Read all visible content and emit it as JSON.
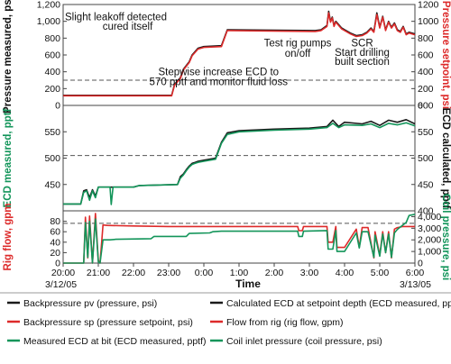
{
  "colors": {
    "black": "#1a1a1a",
    "red": "#dd2a2a",
    "green": "#13955a",
    "frame": "#444444",
    "ref": "#555555"
  },
  "chart_data": {
    "type": "line",
    "xlabel": "Time",
    "x_ticks": [
      "20:00",
      "21:00",
      "22:00",
      "23:00",
      "0:00",
      "1:00",
      "2:00",
      "3:00",
      "4:00",
      "5:00",
      "6:00"
    ],
    "date_start": "3/12/05",
    "date_end": "3/13/05",
    "xlim": [
      "20:00",
      "6:00"
    ],
    "panels": [
      {
        "id": "pressure",
        "ylabel_left": "Pressure measured, psi",
        "ylabel_right": "Pressure setpoint, psi",
        "ylim": [
          0,
          1200
        ],
        "y_ticks_left": [
          "0",
          "200",
          "400",
          "600",
          "800",
          "1,000",
          "1,200"
        ],
        "y_ticks_right": [
          "0",
          "200",
          "400",
          "600",
          "800",
          "1000",
          "1200"
        ],
        "reference_line": 300,
        "annotations": [
          {
            "text": "Slight leakoff detected",
            "x": "21:30",
            "y": 1010
          },
          {
            "text": "cured itself",
            "x": "21:50",
            "y": 900
          },
          {
            "text": "Test rig pumps",
            "x": "2:40",
            "y": 700
          },
          {
            "text": "on/off",
            "x": "2:40",
            "y": 580
          },
          {
            "text": "SCR",
            "x": "4:30",
            "y": 700
          },
          {
            "text": "Start drilling",
            "x": "4:30",
            "y": 590
          },
          {
            "text": "built section",
            "x": "4:30",
            "y": 480
          },
          {
            "text": "Stepwise increase ECD to",
            "x": "0:25",
            "y": 360
          },
          {
            "text": "570 pptf and monitor fluid loss",
            "x": "0:25",
            "y": 240
          }
        ],
        "series": [
          {
            "name": "Backpressure pv (pressure, psi)",
            "color": "black",
            "x": [
              "20:00",
              "23:05",
              "23:10",
              "23:20",
              "23:25",
              "23:35",
              "23:40",
              "23:50",
              "0:00",
              "0:30",
              "0:40",
              "3:10",
              "3:20",
              "3:30",
              "3:33",
              "3:36",
              "3:39",
              "3:42",
              "3:45",
              "3:55",
              "4:10",
              "4:20",
              "4:30",
              "4:38",
              "4:45",
              "4:50",
              "4:55",
              "5:00",
              "5:05",
              "5:10",
              "5:15",
              "5:20",
              "5:25",
              "5:30",
              "5:35",
              "5:40",
              "5:45",
              "5:50",
              "6:00"
            ],
            "y": [
              120,
              120,
              250,
              330,
              430,
              520,
              600,
              680,
              700,
              710,
              900,
              890,
              900,
              950,
              1120,
              1000,
              1050,
              950,
              1000,
              920,
              860,
              830,
              840,
              870,
              920,
              880,
              1100,
              930,
              1060,
              900,
              1000,
              930,
              980,
              900,
              880,
              940,
              850,
              870,
              850
            ]
          },
          {
            "name": "Backpressure sp (pressure setpoint, psi)",
            "color": "red",
            "x": [
              "20:00",
              "23:05",
              "23:10",
              "23:20",
              "23:25",
              "23:35",
              "23:40",
              "23:50",
              "0:00",
              "0:30",
              "0:40",
              "3:10",
              "3:20",
              "3:30",
              "3:33",
              "3:36",
              "3:39",
              "3:42",
              "3:45",
              "3:55",
              "4:10",
              "4:20",
              "4:30",
              "4:38",
              "4:45",
              "4:50",
              "4:55",
              "5:00",
              "5:05",
              "5:10",
              "5:15",
              "5:20",
              "5:25",
              "5:30",
              "5:35",
              "5:40",
              "5:45",
              "5:50",
              "6:00"
            ],
            "y": [
              115,
              115,
              240,
              320,
              420,
              510,
              590,
              670,
              690,
              700,
              890,
              880,
              890,
              940,
              1100,
              990,
              1040,
              940,
              990,
              910,
              850,
              820,
              830,
              860,
              910,
              870,
              1080,
              920,
              1050,
              890,
              990,
              920,
              970,
              890,
              870,
              930,
              840,
              860,
              840
            ]
          }
        ]
      },
      {
        "id": "ecd",
        "ylabel_left": "ECD measured, pptf",
        "ylabel_right": "ECD calculated, pptf",
        "ylim": [
          400,
          600
        ],
        "y_ticks_left": [
          "450",
          "500",
          "550"
        ],
        "y_ticks_right": [
          "400",
          "450",
          "500",
          "550",
          "600"
        ],
        "reference_line": 505,
        "series": [
          {
            "name": "Calculated ECD at setpoint depth (ECD measured, pptf)",
            "color": "black",
            "x": [
              "20:00",
              "20:30",
              "20:35",
              "20:40",
              "20:45",
              "20:50",
              "20:55",
              "21:00",
              "22:00",
              "22:10",
              "23:15",
              "23:20",
              "23:25",
              "23:30",
              "23:35",
              "23:40",
              "23:45",
              "23:50",
              "0:00",
              "0:20",
              "0:30",
              "0:40",
              "1:00",
              "2:00",
              "3:00",
              "3:30",
              "3:40",
              "3:50",
              "4:00",
              "4:30",
              "4:45",
              "5:00",
              "5:15",
              "5:30",
              "5:45",
              "6:00"
            ],
            "y": [
              413,
              413,
              438,
              440,
              425,
              440,
              428,
              445,
              445,
              448,
              450,
              465,
              470,
              478,
              485,
              490,
              492,
              494,
              496,
              500,
              530,
              548,
              552,
              555,
              557,
              560,
              572,
              560,
              568,
              565,
              570,
              562,
              572,
              568,
              573,
              565
            ]
          },
          {
            "name": "Measured ECD at bit (ECD measured, pptf)",
            "color": "green",
            "x": [
              "20:00",
              "20:30",
              "20:35",
              "20:40",
              "20:45",
              "20:50",
              "20:55",
              "21:00",
              "21:20",
              "21:22",
              "21:25",
              "22:00",
              "22:10",
              "23:15",
              "23:20",
              "23:25",
              "23:30",
              "23:35",
              "23:40",
              "23:45",
              "23:50",
              "0:00",
              "0:20",
              "0:30",
              "0:40",
              "1:00",
              "2:00",
              "3:00",
              "3:30",
              "3:40",
              "3:50",
              "4:00",
              "4:30",
              "4:45",
              "5:00",
              "5:15",
              "5:30",
              "5:45",
              "6:00"
            ],
            "y": [
              413,
              413,
              435,
              438,
              420,
              438,
              425,
              445,
              445,
              412,
              445,
              445,
              448,
              450,
              462,
              468,
              476,
              483,
              488,
              490,
              492,
              494,
              498,
              528,
              545,
              550,
              553,
              555,
              558,
              566,
              558,
              563,
              562,
              565,
              558,
              566,
              563,
              567,
              561
            ]
          }
        ]
      },
      {
        "id": "flow",
        "ylabel_left": "Rig flow, gpm",
        "ylabel_right": "Coil pressure, psi",
        "ylim_left": [
          0,
          100
        ],
        "ylim_right": [
          0,
          4500
        ],
        "y_ticks_left": [
          "0",
          "20",
          "40",
          "60",
          "80"
        ],
        "y_ticks_right": [
          "0",
          "1,000",
          "2,000",
          "3,000",
          "4,000"
        ],
        "reference_line": 76,
        "series": [
          {
            "name": "Flow from rig (rig flow, gpm)",
            "color": "red",
            "axis": "left",
            "x": [
              "20:00",
              "20:35",
              "20:38",
              "20:42",
              "20:45",
              "20:50",
              "20:55",
              "21:00",
              "21:03",
              "21:08",
              "21:15",
              "22:00",
              "23:00",
              "0:00",
              "1:00",
              "2:00",
              "2:40",
              "2:42",
              "2:48",
              "2:50",
              "3:00",
              "3:30",
              "3:32",
              "3:40",
              "3:45",
              "3:47",
              "4:00",
              "4:20",
              "4:25",
              "4:30",
              "4:40",
              "4:50",
              "4:52",
              "5:00",
              "5:05",
              "5:10",
              "5:15",
              "5:20",
              "5:25",
              "5:30",
              "5:40",
              "6:00"
            ],
            "y": [
              0,
              0,
              88,
              10,
              90,
              0,
              95,
              5,
              0,
              73,
              72,
              71,
              70,
              70,
              70,
              70,
              70,
              62,
              62,
              70,
              70,
              70,
              40,
              40,
              70,
              30,
              30,
              65,
              30,
              68,
              68,
              10,
              60,
              15,
              60,
              20,
              60,
              10,
              65,
              68,
              70,
              70
            ]
          },
          {
            "name": "Coil inlet pressure (coil pressure, psi)",
            "color": "green",
            "axis": "right",
            "x": [
              "20:00",
              "20:35",
              "20:38",
              "20:42",
              "20:45",
              "20:50",
              "20:55",
              "21:00",
              "21:03",
              "21:08",
              "21:20",
              "21:30",
              "22:30",
              "22:35",
              "23:30",
              "23:35",
              "0:10",
              "0:15",
              "0:30",
              "2:40",
              "2:42",
              "2:48",
              "2:50",
              "3:30",
              "3:32",
              "3:40",
              "3:45",
              "3:47",
              "4:00",
              "4:20",
              "4:25",
              "4:30",
              "4:40",
              "4:50",
              "4:52",
              "5:00",
              "5:05",
              "5:10",
              "5:15",
              "5:20",
              "5:25",
              "5:30",
              "5:45",
              "5:50",
              "6:00"
            ],
            "y": [
              0,
              0,
              3500,
              500,
              3600,
              0,
              3800,
              100,
              0,
              2000,
              2000,
              2050,
              2100,
              2300,
              2300,
              2550,
              2600,
              2700,
              2750,
              2750,
              2300,
              2300,
              2750,
              2800,
              1200,
              1200,
              2800,
              1000,
              1000,
              2600,
              1300,
              2700,
              2700,
              500,
              2400,
              600,
              2500,
              900,
              2500,
              500,
              2600,
              2900,
              3500,
              4100,
              4200
            ]
          }
        ]
      }
    ],
    "legend": [
      {
        "label": "Backpressure pv (pressure, psi)",
        "color": "black"
      },
      {
        "label": "Calculated ECD at setpoint depth (ECD measured, pptf)",
        "color": "black"
      },
      {
        "label": "Backpressure sp (pressure setpoint, psi)",
        "color": "red"
      },
      {
        "label": "Flow from rig (rig flow, gpm)",
        "color": "red"
      },
      {
        "label": "Measured ECD at bit (ECD measured, pptf)",
        "color": "green"
      },
      {
        "label": "Coil inlet pressure (coil pressure, psi)",
        "color": "green"
      }
    ]
  }
}
